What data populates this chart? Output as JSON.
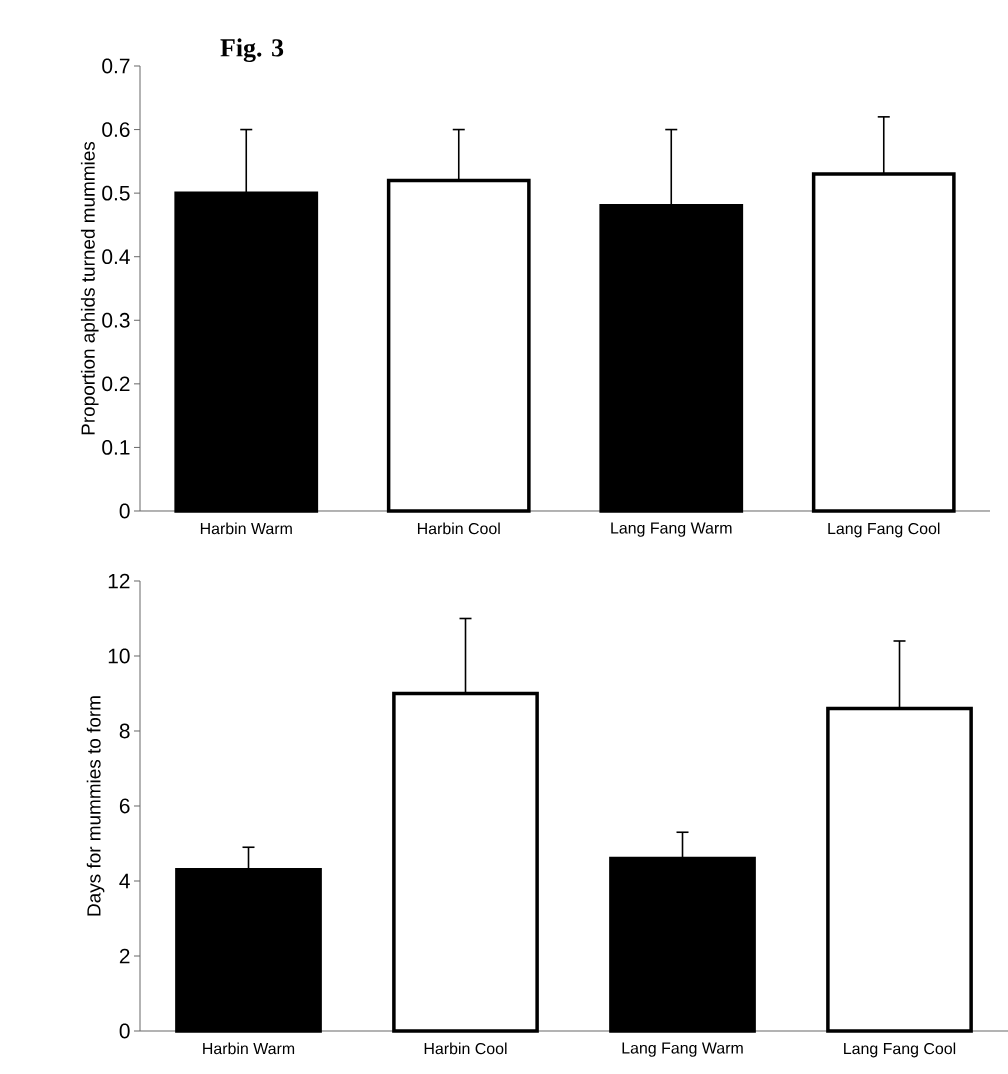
{
  "chart_data": [
    {
      "type": "bar",
      "title": "Fig. 3",
      "ylabel": "Proportion aphids turned mummies",
      "categories": [
        "Harbin Warm",
        "Harbin Cool",
        "Lang Fang Warm",
        "Lang Fang Cool"
      ],
      "values": [
        0.5,
        0.52,
        0.48,
        0.53
      ],
      "errors": [
        [
          0.5,
          0.6
        ],
        [
          0.52,
          0.6
        ],
        [
          0.48,
          0.6
        ],
        [
          0.53,
          0.62
        ]
      ],
      "colors": [
        "#000000",
        "#ffffff",
        "#000000",
        "#ffffff"
      ],
      "ylim": [
        0,
        0.7
      ],
      "yticks": [
        0,
        0.1,
        0.2,
        0.3,
        0.4,
        0.5,
        0.6,
        0.7
      ],
      "grid": false
    },
    {
      "type": "bar",
      "ylabel": "Days for mummies to form",
      "categories": [
        "Harbin Warm",
        "Harbin Cool",
        "Lang Fang Warm",
        "Lang Fang Cool"
      ],
      "values": [
        4.3,
        9.0,
        4.6,
        8.6
      ],
      "errors": [
        [
          4.3,
          4.9
        ],
        [
          9.0,
          11.0
        ],
        [
          4.6,
          5.3
        ],
        [
          8.6,
          10.4
        ]
      ],
      "colors": [
        "#000000",
        "#ffffff",
        "#000000",
        "#ffffff"
      ],
      "ylim": [
        0,
        12
      ],
      "yticks": [
        0,
        2,
        4,
        6,
        8,
        10,
        12
      ],
      "grid": false
    }
  ]
}
